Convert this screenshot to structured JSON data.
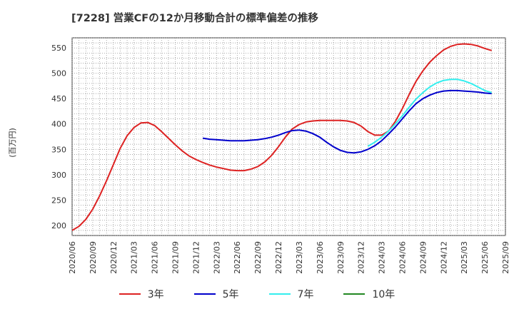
{
  "title": "[7228]  営業CFの12か月移動合計の標準偏差の推移",
  "ylabel": "(百万円)",
  "chart_data": {
    "type": "line",
    "title": "[7228]  営業CFの12か月移動合計の標準偏差の推移",
    "ylabel": "(百万円)",
    "xlabel": "",
    "ylim": [
      180,
      570
    ],
    "yticks": [
      200,
      250,
      300,
      350,
      400,
      450,
      500,
      550
    ],
    "xlim": [
      "2020-06",
      "2025-09"
    ],
    "xticks": [
      "2020/06",
      "2020/09",
      "2020/12",
      "2021/03",
      "2021/06",
      "2021/09",
      "2021/12",
      "2022/03",
      "2022/06",
      "2022/09",
      "2022/12",
      "2023/03",
      "2023/06",
      "2023/09",
      "2023/12",
      "2024/03",
      "2024/06",
      "2024/09",
      "2024/12",
      "2025/03",
      "2025/06",
      "2025/09"
    ],
    "grid": true,
    "legend_position": "bottom",
    "series": [
      {
        "name": "3年",
        "color": "#dd2222",
        "points": [
          [
            "2020-06",
            190
          ],
          [
            "2020-07",
            198
          ],
          [
            "2020-08",
            212
          ],
          [
            "2020-09",
            232
          ],
          [
            "2020-10",
            258
          ],
          [
            "2020-11",
            288
          ],
          [
            "2020-12",
            320
          ],
          [
            "2021-01",
            352
          ],
          [
            "2021-02",
            377
          ],
          [
            "2021-03",
            393
          ],
          [
            "2021-04",
            402
          ],
          [
            "2021-05",
            403
          ],
          [
            "2021-06",
            397
          ],
          [
            "2021-07",
            385
          ],
          [
            "2021-08",
            372
          ],
          [
            "2021-09",
            359
          ],
          [
            "2021-10",
            347
          ],
          [
            "2021-11",
            337
          ],
          [
            "2021-12",
            330
          ],
          [
            "2022-01",
            324
          ],
          [
            "2022-02",
            319
          ],
          [
            "2022-03",
            315
          ],
          [
            "2022-04",
            312
          ],
          [
            "2022-05",
            309
          ],
          [
            "2022-06",
            308
          ],
          [
            "2022-07",
            308
          ],
          [
            "2022-08",
            311
          ],
          [
            "2022-09",
            316
          ],
          [
            "2022-10",
            325
          ],
          [
            "2022-11",
            338
          ],
          [
            "2022-12",
            355
          ],
          [
            "2023-01",
            374
          ],
          [
            "2023-02",
            390
          ],
          [
            "2023-03",
            399
          ],
          [
            "2023-04",
            404
          ],
          [
            "2023-05",
            406
          ],
          [
            "2023-06",
            407
          ],
          [
            "2023-07",
            407
          ],
          [
            "2023-08",
            407
          ],
          [
            "2023-09",
            407
          ],
          [
            "2023-10",
            406
          ],
          [
            "2023-11",
            403
          ],
          [
            "2023-12",
            396
          ],
          [
            "2024-01",
            385
          ],
          [
            "2024-02",
            378
          ],
          [
            "2024-03",
            378
          ],
          [
            "2024-04",
            386
          ],
          [
            "2024-05",
            405
          ],
          [
            "2024-06",
            430
          ],
          [
            "2024-07",
            458
          ],
          [
            "2024-08",
            484
          ],
          [
            "2024-09",
            505
          ],
          [
            "2024-10",
            522
          ],
          [
            "2024-11",
            535
          ],
          [
            "2024-12",
            546
          ],
          [
            "2025-01",
            553
          ],
          [
            "2025-02",
            557
          ],
          [
            "2025-03",
            558
          ],
          [
            "2025-04",
            557
          ],
          [
            "2025-05",
            554
          ],
          [
            "2025-06",
            549
          ],
          [
            "2025-07",
            545
          ]
        ]
      },
      {
        "name": "5年",
        "color": "#0000cc",
        "points": [
          [
            "2022-01",
            372
          ],
          [
            "2022-02",
            370
          ],
          [
            "2022-03",
            369
          ],
          [
            "2022-04",
            368
          ],
          [
            "2022-05",
            367
          ],
          [
            "2022-06",
            367
          ],
          [
            "2022-07",
            367
          ],
          [
            "2022-08",
            368
          ],
          [
            "2022-09",
            369
          ],
          [
            "2022-10",
            371
          ],
          [
            "2022-11",
            374
          ],
          [
            "2022-12",
            378
          ],
          [
            "2023-01",
            383
          ],
          [
            "2023-02",
            387
          ],
          [
            "2023-03",
            388
          ],
          [
            "2023-04",
            386
          ],
          [
            "2023-05",
            381
          ],
          [
            "2023-06",
            374
          ],
          [
            "2023-07",
            364
          ],
          [
            "2023-08",
            355
          ],
          [
            "2023-09",
            348
          ],
          [
            "2023-10",
            344
          ],
          [
            "2023-11",
            343
          ],
          [
            "2023-12",
            345
          ],
          [
            "2024-01",
            350
          ],
          [
            "2024-02",
            357
          ],
          [
            "2024-03",
            367
          ],
          [
            "2024-04",
            380
          ],
          [
            "2024-05",
            394
          ],
          [
            "2024-06",
            410
          ],
          [
            "2024-07",
            426
          ],
          [
            "2024-08",
            440
          ],
          [
            "2024-09",
            450
          ],
          [
            "2024-10",
            457
          ],
          [
            "2024-11",
            462
          ],
          [
            "2024-12",
            465
          ],
          [
            "2025-01",
            466
          ],
          [
            "2025-02",
            466
          ],
          [
            "2025-03",
            465
          ],
          [
            "2025-04",
            464
          ],
          [
            "2025-05",
            463
          ],
          [
            "2025-06",
            461
          ],
          [
            "2025-07",
            460
          ]
        ]
      },
      {
        "name": "7年",
        "color": "#33eeee",
        "points": [
          [
            "2024-01",
            356
          ],
          [
            "2024-02",
            364
          ],
          [
            "2024-03",
            374
          ],
          [
            "2024-04",
            386
          ],
          [
            "2024-05",
            400
          ],
          [
            "2024-06",
            416
          ],
          [
            "2024-07",
            433
          ],
          [
            "2024-08",
            449
          ],
          [
            "2024-09",
            462
          ],
          [
            "2024-10",
            473
          ],
          [
            "2024-11",
            481
          ],
          [
            "2024-12",
            486
          ],
          [
            "2025-01",
            488
          ],
          [
            "2025-02",
            488
          ],
          [
            "2025-03",
            485
          ],
          [
            "2025-04",
            480
          ],
          [
            "2025-05",
            473
          ],
          [
            "2025-06",
            466
          ],
          [
            "2025-07",
            462
          ]
        ]
      },
      {
        "name": "10年",
        "color": "#228822",
        "points": []
      }
    ]
  }
}
